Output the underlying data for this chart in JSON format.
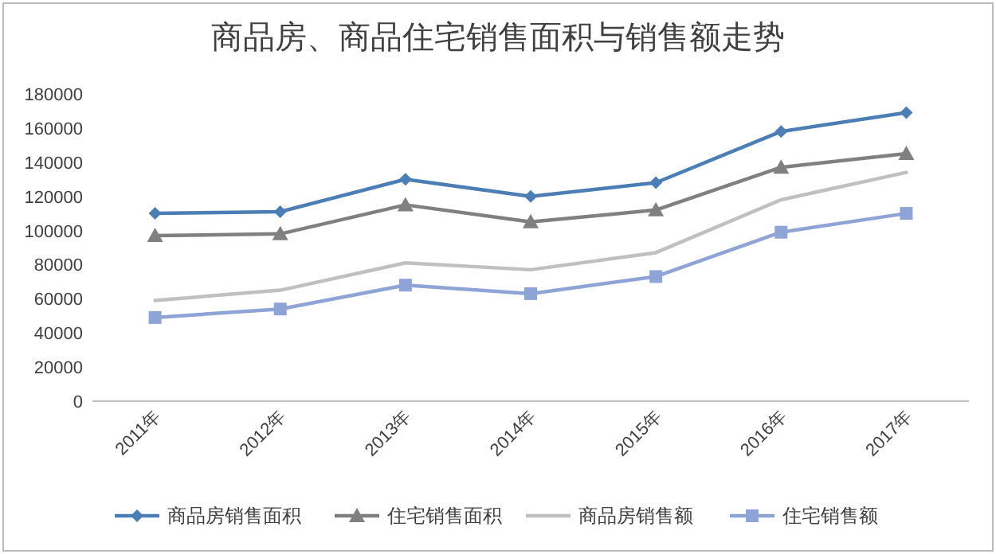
{
  "chart_data": {
    "type": "line",
    "title": "商品房、商品住宅销售面积与销售额走势",
    "categories": [
      "2011年",
      "2012年",
      "2013年",
      "2014年",
      "2015年",
      "2016年",
      "2017年"
    ],
    "series": [
      {
        "name": "商品房销售面积",
        "color": "#4a7eb5",
        "marker": "diamond",
        "values": [
          110000,
          111000,
          130000,
          120000,
          128000,
          158000,
          169000
        ]
      },
      {
        "name": "住宅销售面积",
        "color": "#808080",
        "marker": "triangle",
        "values": [
          97000,
          98000,
          115000,
          105000,
          112000,
          137000,
          145000
        ]
      },
      {
        "name": "商品房销售额",
        "color": "#c0c0c0",
        "marker": "none",
        "values": [
          59000,
          65000,
          81000,
          77000,
          87000,
          118000,
          134000
        ]
      },
      {
        "name": "住宅销售额",
        "color": "#8fa4d6",
        "marker": "square",
        "values": [
          49000,
          54000,
          68000,
          63000,
          73000,
          99000,
          110000
        ]
      }
    ],
    "ylim": [
      0,
      180000
    ],
    "yticks": [
      0,
      20000,
      40000,
      60000,
      80000,
      100000,
      120000,
      140000,
      160000,
      180000
    ],
    "grid": false,
    "legend": "bottom",
    "line_style": "solid"
  }
}
